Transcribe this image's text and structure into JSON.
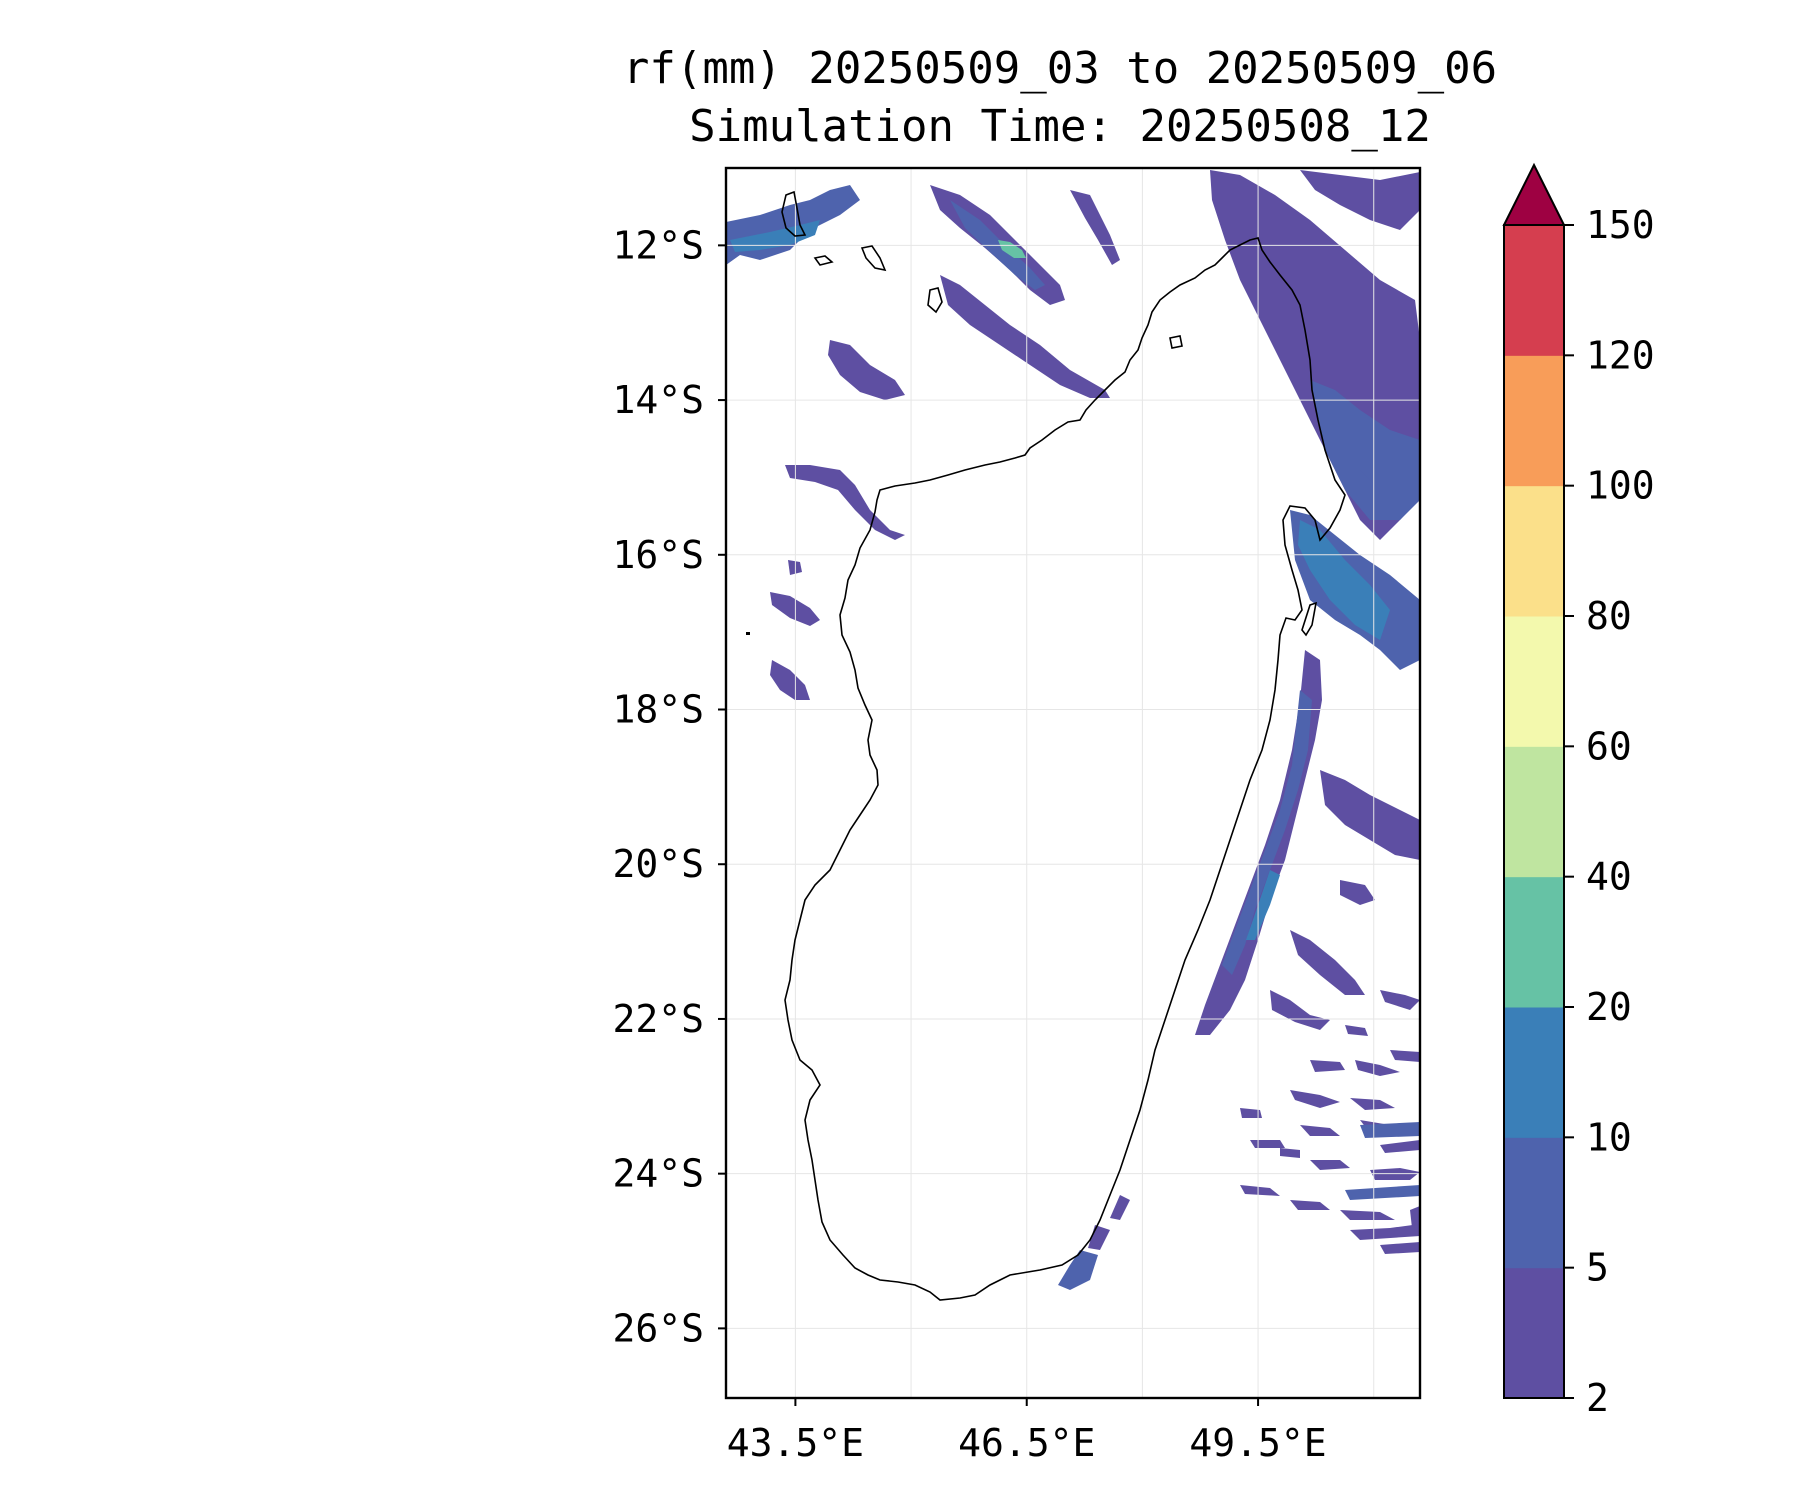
{
  "title": {
    "line1": "rf(mm) 20250509_03 to 20250509_06",
    "line2": "Simulation Time: 20250508_12"
  },
  "map": {
    "lon_range": [
      42.6,
      51.6
    ],
    "lat_range": [
      -26.9,
      -11.0
    ],
    "lon_ticks": [
      {
        "value": 43.5,
        "label": "43.5°E"
      },
      {
        "value": 46.5,
        "label": "46.5°E"
      },
      {
        "value": 49.5,
        "label": "49.5°E"
      }
    ],
    "lat_ticks": [
      {
        "value": -12,
        "label": "12°S"
      },
      {
        "value": -14,
        "label": "14°S"
      },
      {
        "value": -16,
        "label": "16°S"
      },
      {
        "value": -18,
        "label": "18°S"
      },
      {
        "value": -20,
        "label": "20°S"
      },
      {
        "value": -22,
        "label": "22°S"
      },
      {
        "value": -24,
        "label": "24°S"
      },
      {
        "value": -26,
        "label": "26°S"
      }
    ],
    "extra_lon_gridlines": [
      45.0,
      48.0,
      51.0
    ],
    "grid": true,
    "coastline_color": "#000000"
  },
  "colorbar": {
    "levels": [
      "2",
      "5",
      "10",
      "20",
      "40",
      "60",
      "80",
      "100",
      "120",
      "150"
    ],
    "colors": [
      "#5e4fa2",
      "#4e63ad",
      "#3a7fb8",
      "#66c2a5",
      "#bfe5a0",
      "#f3f9ad",
      "#fbe08a",
      "#f89d59",
      "#d53e4f"
    ],
    "extend_color": "#9e0142",
    "extend": "max"
  },
  "rain_patches": {
    "description_colors": {
      "light": "#5e4fa2",
      "moderate": "#4e63ad",
      "heavy": "#3a7fb8",
      "peak": "#66c2a5"
    }
  }
}
